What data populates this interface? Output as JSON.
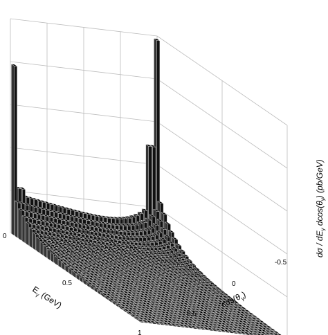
{
  "chart_data": {
    "type": "bar3d",
    "title": "",
    "xlabel": "Eγ (GeV)",
    "ylabel": "cos(θγ)",
    "zlabel": "dσ / dEγ dcos(θγ) (pb/GeV)",
    "xlabel_parts": {
      "base": "E",
      "sub": "γ",
      "rest": " (GeV)"
    },
    "ylabel_parts": {
      "pre": "cos(θ",
      "sub": "γ",
      "post": ")"
    },
    "zlabel_parts": {
      "a": "dσ / dE",
      "a_sub": "γ",
      "b": " dcos(θ",
      "b_sub": "γ",
      "c": ") (pb/GeV)"
    },
    "x_range": [
      0,
      1
    ],
    "y_range": [
      -1,
      1
    ],
    "x_ticks": [
      "0",
      "0.5",
      "1"
    ],
    "y_ticks": [
      "-0.5",
      "0",
      "0.5"
    ],
    "grid": true,
    "shape": "peaked near E=0 and at the back edge cos=-1, falling toward E=1 and cos=+1",
    "peaks": [
      {
        "x": 0.0,
        "y": 1.0,
        "value": 1.0
      },
      {
        "x": 0.0,
        "y": -1.0,
        "value": 1.25
      }
    ]
  }
}
